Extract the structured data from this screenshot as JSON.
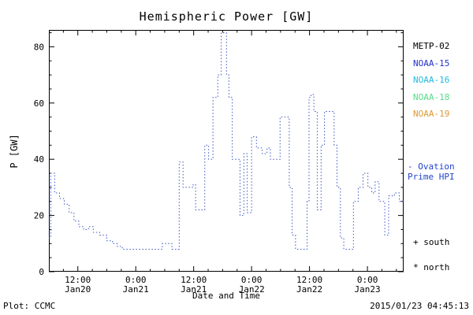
{
  "title": "Hemispheric Power [GW]",
  "chart_data": {
    "type": "line",
    "title": "Hemispheric Power [GW]",
    "xlabel": "Date and Time",
    "ylabel": "P [GW]",
    "ylim": [
      0,
      86
    ],
    "yticks": [
      0,
      20,
      40,
      60,
      80
    ],
    "y_minor_step": 5,
    "xlim_hours": [
      0,
      73.5
    ],
    "x_minor_step_hours": 3,
    "xticks": [
      {
        "h": 6,
        "time": "12:00",
        "date": "Jan20"
      },
      {
        "h": 18,
        "time": "0:00",
        "date": "Jan21"
      },
      {
        "h": 30,
        "time": "12:00",
        "date": "Jan21"
      },
      {
        "h": 42,
        "time": "0:00",
        "date": "Jan22"
      },
      {
        "h": 54,
        "time": "12:00",
        "date": "Jan22"
      },
      {
        "h": 66,
        "time": "0:00",
        "date": "Jan23"
      }
    ],
    "grid": false,
    "line_style": "dotted-step",
    "line_color": "#3a55c0",
    "series": [
      {
        "name": "Ovation Prime HPI",
        "points": [
          [
            0,
            12
          ],
          [
            0.4,
            35
          ],
          [
            1.2,
            28
          ],
          [
            2.2,
            26
          ],
          [
            3.2,
            24
          ],
          [
            4.2,
            21
          ],
          [
            5.2,
            18
          ],
          [
            6.2,
            16
          ],
          [
            7.2,
            15
          ],
          [
            8.2,
            16
          ],
          [
            9.2,
            14
          ],
          [
            10.5,
            13
          ],
          [
            12,
            11
          ],
          [
            13.2,
            10
          ],
          [
            14.2,
            9
          ],
          [
            15.2,
            8
          ],
          [
            23.5,
            10
          ],
          [
            25.5,
            8
          ],
          [
            27,
            39
          ],
          [
            27.8,
            30
          ],
          [
            29.5,
            30
          ],
          [
            29.9,
            31
          ],
          [
            30.4,
            22
          ],
          [
            31.6,
            22
          ],
          [
            32.3,
            45
          ],
          [
            33.1,
            40
          ],
          [
            34,
            62
          ],
          [
            35,
            70
          ],
          [
            35.7,
            85
          ],
          [
            36.8,
            70
          ],
          [
            37.3,
            62
          ],
          [
            38,
            40
          ],
          [
            39.2,
            40
          ],
          [
            39.6,
            20
          ],
          [
            40.4,
            42
          ],
          [
            41.1,
            21
          ],
          [
            42,
            48
          ],
          [
            43,
            44
          ],
          [
            44.2,
            42
          ],
          [
            45.2,
            44
          ],
          [
            45.9,
            40
          ],
          [
            47.2,
            40
          ],
          [
            47.9,
            55
          ],
          [
            49.1,
            55
          ],
          [
            49.8,
            30
          ],
          [
            50.4,
            13
          ],
          [
            51.1,
            8
          ],
          [
            53.2,
            8
          ],
          [
            53.5,
            25
          ],
          [
            53.9,
            62
          ],
          [
            54.3,
            63
          ],
          [
            54.9,
            57
          ],
          [
            55.6,
            22
          ],
          [
            56.4,
            45
          ],
          [
            57.1,
            57
          ],
          [
            58.6,
            57
          ],
          [
            59.1,
            45
          ],
          [
            59.7,
            30
          ],
          [
            60.4,
            12
          ],
          [
            61.1,
            8
          ],
          [
            62.6,
            8
          ],
          [
            63.1,
            25
          ],
          [
            64.1,
            30
          ],
          [
            65.1,
            35
          ],
          [
            66.1,
            30
          ],
          [
            66.9,
            28
          ],
          [
            67.6,
            32
          ],
          [
            68.4,
            25
          ],
          [
            69.6,
            13
          ],
          [
            70.4,
            27
          ],
          [
            71.6,
            28
          ],
          [
            72.6,
            25
          ],
          [
            73.5,
            25
          ]
        ]
      }
    ]
  },
  "legend": {
    "satellites": [
      {
        "label": "METP-02",
        "color": "#000000"
      },
      {
        "label": "NOAA-15",
        "color": "#2233cc"
      },
      {
        "label": "NOAA-16",
        "color": "#22bbdd"
      },
      {
        "label": "NOAA-18",
        "color": "#55dd88"
      },
      {
        "label": "NOAA-19",
        "color": "#dd9933"
      }
    ],
    "model": {
      "dash": "-",
      "name_line1": "Ovation",
      "name_line2": "Prime HPI",
      "color": "#2244cc"
    },
    "markers": [
      {
        "symbol": "+",
        "label": "south"
      },
      {
        "symbol": "*",
        "label": "north"
      }
    ]
  },
  "footer": {
    "left": "Plot: CCMC",
    "right": "2015/01/23 04:45:13"
  }
}
